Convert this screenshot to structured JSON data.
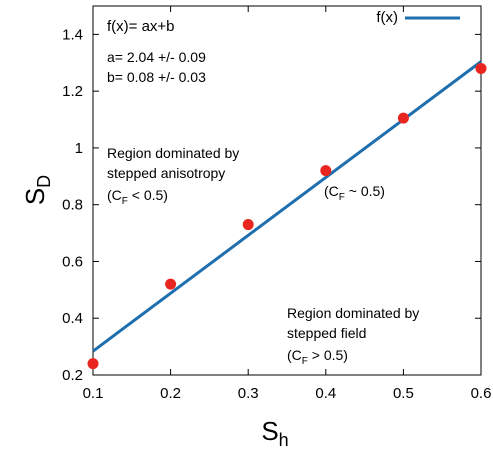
{
  "chart_data": {
    "type": "scatter",
    "xlabel": "S",
    "xlabel_sub": "h",
    "ylabel": "S",
    "ylabel_sub": "D",
    "xlim": [
      0.1,
      0.6
    ],
    "ylim": [
      0.2,
      1.5
    ],
    "xticks": [
      0.1,
      0.2,
      0.3,
      0.4,
      0.5,
      0.6
    ],
    "xtick_labels": [
      "0.1",
      "0.2",
      "0.3",
      "0.4",
      "0.5",
      "0.6"
    ],
    "yticks": [
      0.2,
      0.4,
      0.6,
      0.8,
      1.0,
      1.2,
      1.4
    ],
    "ytick_labels": [
      "0.2",
      "0.4",
      "0.6",
      "0.8",
      "1",
      "1.2",
      "1.4"
    ],
    "grid": false,
    "legend": "top-right",
    "series": [
      {
        "kind": "points",
        "color": "#e8251f",
        "x": [
          0.1,
          0.2,
          0.3,
          0.4,
          0.5,
          0.6
        ],
        "y": [
          0.24,
          0.52,
          0.73,
          0.92,
          1.105,
          1.28
        ]
      },
      {
        "kind": "line",
        "name": "f(x)",
        "color": "#1f6fae",
        "slope": 2.04,
        "intercept": 0.08
      }
    ],
    "annotations": {
      "equation": "f(x)= ax+b",
      "fit_a": "a= 2.04 +/- 0.09",
      "fit_b": "b= 0.08 +/- 0.03",
      "region1_line1": "Region dominated by",
      "region1_line2": "stepped anisotropy",
      "region1_line3_pre": "(C",
      "region1_line3_sub": "F",
      "region1_line3_post": " < 0.5)",
      "mid_pre": "(C",
      "mid_sub": "F",
      "mid_post": " ~ 0.5)",
      "region2_line1": "Region dominated by",
      "region2_line2": "stepped field",
      "region2_line3_pre": "(C",
      "region2_line3_sub": "F",
      "region2_line3_post": " > 0.5)"
    }
  }
}
